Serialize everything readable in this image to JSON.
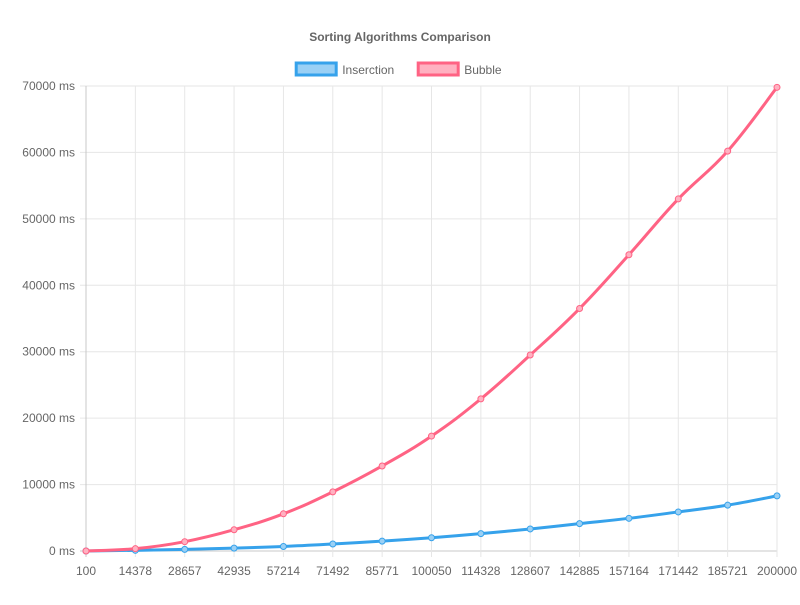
{
  "chart_data": {
    "type": "line",
    "title": "Sorting Algorithms Comparison",
    "xlabel": "",
    "ylabel": "",
    "categories": [
      "100",
      "14378",
      "28657",
      "42935",
      "57214",
      "71492",
      "85771",
      "100050",
      "114328",
      "128607",
      "142885",
      "157164",
      "171442",
      "185721",
      "200000"
    ],
    "y_tick_labels": [
      "0 ms",
      "10000 ms",
      "20000 ms",
      "30000 ms",
      "40000 ms",
      "50000 ms",
      "60000 ms",
      "70000 ms"
    ],
    "y_ticks": [
      0,
      10000,
      20000,
      30000,
      40000,
      50000,
      60000,
      70000
    ],
    "ylim": [
      0,
      70000
    ],
    "grid": true,
    "legend_position": "top",
    "series": [
      {
        "name": "Inserction",
        "color": "#36a2eb",
        "fill": "#9ad0f5",
        "values": [
          0,
          100,
          250,
          430,
          680,
          1050,
          1480,
          2000,
          2620,
          3320,
          4120,
          4920,
          5880,
          6900,
          8300
        ]
      },
      {
        "name": "Bubble",
        "color": "#ff6384",
        "fill": "#ffb1c1",
        "values": [
          0,
          350,
          1400,
          3200,
          5600,
          8900,
          12800,
          17300,
          22900,
          29500,
          36500,
          44600,
          53000,
          60200,
          69800
        ]
      }
    ]
  }
}
